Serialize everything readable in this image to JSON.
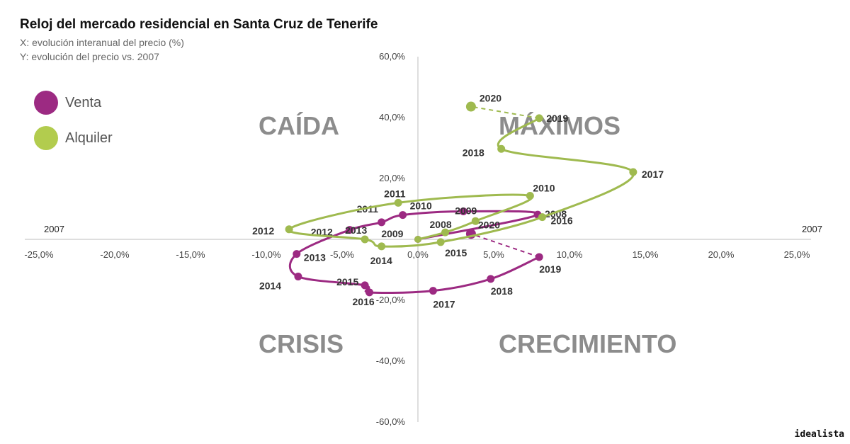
{
  "header": {
    "title": "Reloj del mercado residencial en Santa Cruz de Tenerife",
    "subtitle_x": "X: evolución interanual del precio (%)",
    "subtitle_y": "Y: evolución del precio vs. 2007"
  },
  "brand": "idealista",
  "chart_data": {
    "type": "line",
    "title": "Reloj del mercado residencial en Santa Cruz de Tenerife",
    "xlabel": "X: evolución interanual del precio (%)",
    "ylabel": "Y: evolución del precio vs. 2007",
    "xlim": [
      -25,
      25
    ],
    "ylim": [
      -60,
      60
    ],
    "x_ticks": [
      "-25,0%",
      "-20,0%",
      "-15,0%",
      "-10,0%",
      "-5,0%",
      "0,0%",
      "5,0%",
      "10,0%",
      "15,0%",
      "20,0%",
      "25,0%"
    ],
    "y_ticks": [
      "60,0%",
      "40,0%",
      "20,0%",
      "-20,0%",
      "-40,0%",
      "-60,0%"
    ],
    "reference_labels": {
      "left": "2007",
      "right": "2007"
    },
    "quadrants": {
      "top_left": "CAÍDA",
      "top_right": "MÁXIMOS",
      "bottom_left": "CRISIS",
      "bottom_right": "CRECIMIENTO"
    },
    "legend": {
      "position": "top-left"
    },
    "series": [
      {
        "name": "Venta",
        "color": "#9c2a82",
        "points": [
          {
            "year": "2007",
            "x": 0.0,
            "y": 0.0
          },
          {
            "year": "2008",
            "x": 7.9,
            "y": 8.1
          },
          {
            "year": "2009",
            "x": 3.0,
            "y": 9.2
          },
          {
            "year": "2010",
            "x": -1.0,
            "y": 8.0
          },
          {
            "year": "2011",
            "x": -2.4,
            "y": 5.6
          },
          {
            "year": "2012",
            "x": -4.5,
            "y": 3.1
          },
          {
            "year": "2013",
            "x": -8.0,
            "y": -4.8
          },
          {
            "year": "2014",
            "x": -7.9,
            "y": -12.2
          },
          {
            "year": "2015",
            "x": -3.5,
            "y": -15.1
          },
          {
            "year": "2016",
            "x": -3.2,
            "y": -17.4
          },
          {
            "year": "2017",
            "x": 1.0,
            "y": -16.9
          },
          {
            "year": "2018",
            "x": 4.8,
            "y": -13.0
          },
          {
            "year": "2019",
            "x": 8.0,
            "y": -5.8
          },
          {
            "year": "2020",
            "x": 3.5,
            "y": 1.8
          }
        ]
      },
      {
        "name": "Alquiler",
        "color": "#9fba4f",
        "points": [
          {
            "year": "2007",
            "x": 0.0,
            "y": 0.0
          },
          {
            "year": "2008",
            "x": 1.8,
            "y": 2.3
          },
          {
            "year": "2009",
            "x": 3.8,
            "y": 6.0
          },
          {
            "year": "2010",
            "x": 7.4,
            "y": 14.3
          },
          {
            "year": "2011",
            "x": -1.3,
            "y": 12.0
          },
          {
            "year": "2012",
            "x": -8.5,
            "y": 3.3
          },
          {
            "year": "2013",
            "x": -3.5,
            "y": 0.0
          },
          {
            "year": "2014",
            "x": -2.4,
            "y": -2.3
          },
          {
            "year": "2015",
            "x": 1.5,
            "y": -0.9
          },
          {
            "year": "2016",
            "x": 8.2,
            "y": 7.3
          },
          {
            "year": "2017",
            "x": 14.2,
            "y": 22.1
          },
          {
            "year": "2018",
            "x": 5.5,
            "y": 29.7
          },
          {
            "year": "2019",
            "x": 8.0,
            "y": 39.8
          },
          {
            "year": "2020",
            "x": 3.5,
            "y": 43.6
          }
        ]
      }
    ]
  }
}
